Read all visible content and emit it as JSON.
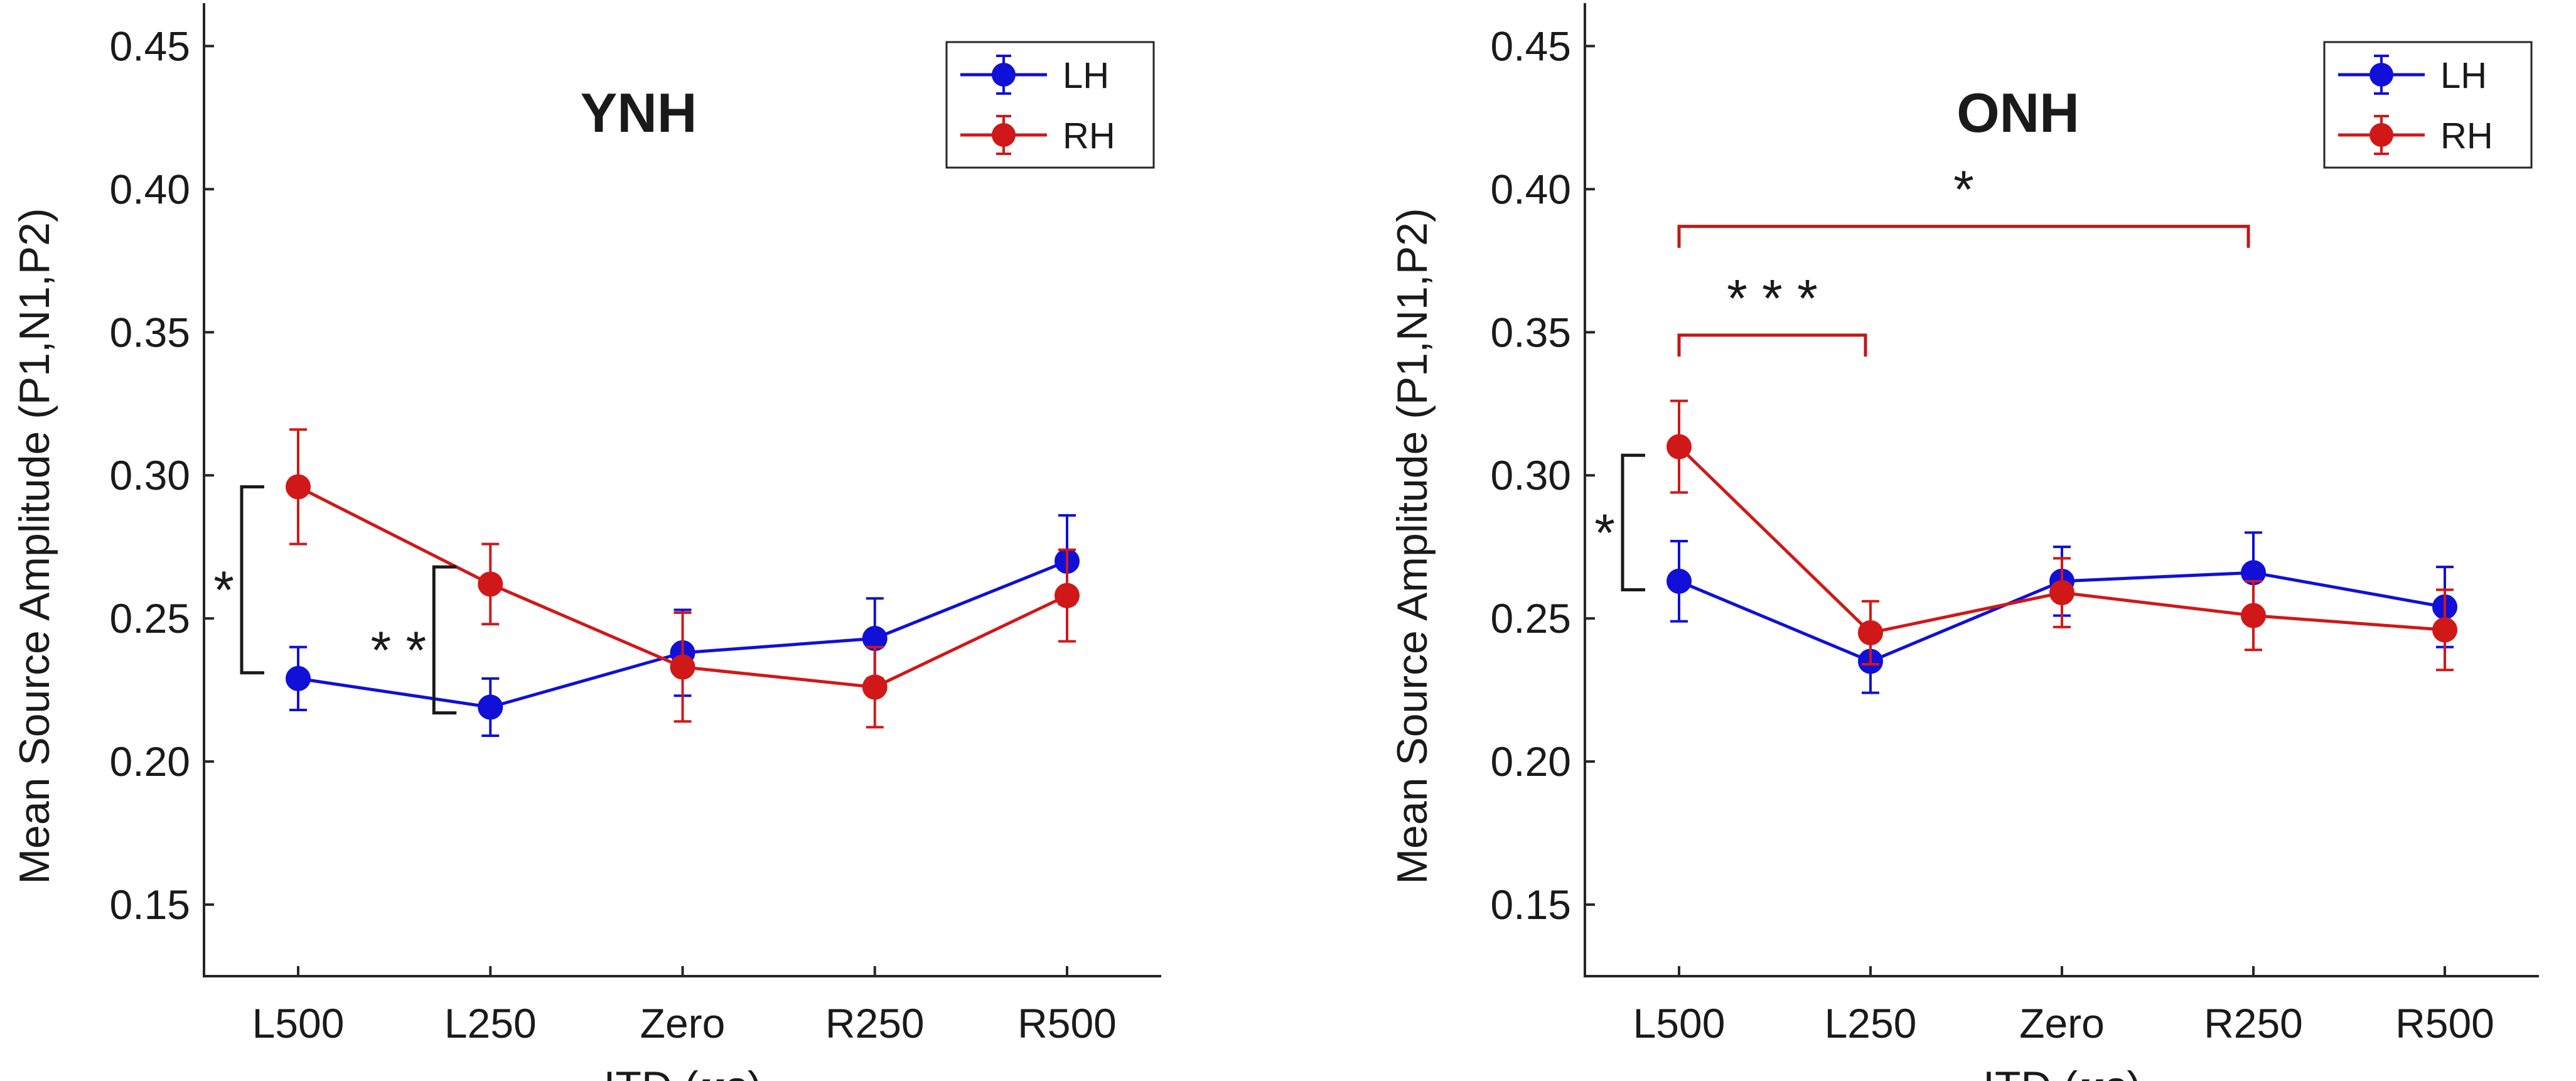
{
  "chart_data": [
    {
      "type": "line",
      "title": "YNH",
      "xlabel_prefix": "ITD (",
      "xlabel_mu": "μ",
      "xlabel_suffix": "s)",
      "ylabel": "Mean Source Amplitude (P1,N1,P2)",
      "categories": [
        "L500",
        "L250",
        "Zero",
        "R250",
        "R500"
      ],
      "ylim": [
        0.125,
        0.465
      ],
      "yticks": [
        "0.15",
        "0.20",
        "0.25",
        "0.30",
        "0.35",
        "0.40",
        "0.45"
      ],
      "ytick_values": [
        0.15,
        0.2,
        0.25,
        0.3,
        0.35,
        0.4,
        0.45
      ],
      "legend_position": "top-right",
      "series": [
        {
          "name": "LH",
          "color": "#1010d8",
          "values": [
            0.229,
            0.219,
            0.238,
            0.243,
            0.27
          ],
          "err_low": [
            0.218,
            0.209,
            0.223,
            0.229,
            0.255
          ],
          "err_high": [
            0.24,
            0.229,
            0.253,
            0.257,
            0.286
          ]
        },
        {
          "name": "RH",
          "color": "#d01818",
          "values": [
            0.296,
            0.262,
            0.233,
            0.226,
            0.258
          ],
          "err_low": [
            0.276,
            0.248,
            0.214,
            0.212,
            0.242
          ],
          "err_high": [
            0.316,
            0.276,
            0.252,
            0.24,
            0.274
          ]
        }
      ],
      "significance": [
        {
          "label": "*",
          "kind": "vertical",
          "color": "#1a1a1a",
          "x_cat": 0,
          "y_low": 0.231,
          "y_high": 0.296
        },
        {
          "label": "* *",
          "kind": "vertical",
          "color": "#1a1a1a",
          "x_cat": 1,
          "y_low": 0.217,
          "y_high": 0.268
        }
      ]
    },
    {
      "type": "line",
      "title": "ONH",
      "xlabel_prefix": "ITD (",
      "xlabel_mu": "μ",
      "xlabel_suffix": "s)",
      "ylabel": "Mean Source Amplitude (P1,N1,P2)",
      "categories": [
        "L500",
        "L250",
        "Zero",
        "R250",
        "R500"
      ],
      "ylim": [
        0.125,
        0.465
      ],
      "yticks": [
        "0.15",
        "0.20",
        "0.25",
        "0.30",
        "0.35",
        "0.40",
        "0.45"
      ],
      "ytick_values": [
        0.15,
        0.2,
        0.25,
        0.3,
        0.35,
        0.4,
        0.45
      ],
      "legend_position": "top-right",
      "series": [
        {
          "name": "LH",
          "color": "#1010d8",
          "values": [
            0.263,
            0.235,
            0.263,
            0.266,
            0.254
          ],
          "err_low": [
            0.249,
            0.224,
            0.251,
            0.252,
            0.24
          ],
          "err_high": [
            0.277,
            0.246,
            0.275,
            0.28,
            0.268
          ]
        },
        {
          "name": "RH",
          "color": "#d01818",
          "values": [
            0.31,
            0.245,
            0.259,
            0.251,
            0.246
          ],
          "err_low": [
            0.294,
            0.234,
            0.247,
            0.239,
            0.232
          ],
          "err_high": [
            0.326,
            0.256,
            0.271,
            0.263,
            0.26
          ]
        }
      ],
      "significance": [
        {
          "label": "*",
          "kind": "vertical",
          "color": "#1a1a1a",
          "x_cat": 0,
          "y_low": 0.26,
          "y_high": 0.307
        },
        {
          "label": "* * *",
          "kind": "horizontal",
          "color": "#c01818",
          "x_from": 0,
          "x_to": 1,
          "y": 0.349,
          "drop": 0.0075
        },
        {
          "label": "*",
          "kind": "horizontal",
          "color": "#c01818",
          "x_from": 0,
          "x_to": 3,
          "y": 0.387,
          "drop": 0.0075
        }
      ]
    }
  ]
}
